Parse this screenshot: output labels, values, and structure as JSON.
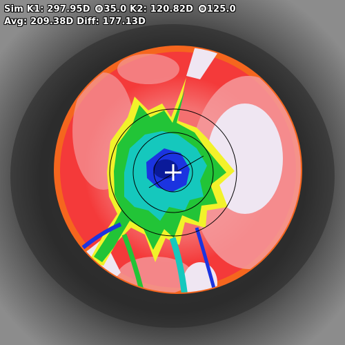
{
  "readout": {
    "sim_k1_label": "Sim K1:",
    "sim_k1_value": "297.95D",
    "sim_k1_axis": "35.0",
    "k2_label": "K2:",
    "k2_value": "120.82D",
    "k2_axis": "125.0",
    "avg_label": "Avg:",
    "avg_value": "209.38D",
    "diff_label": "Diff:",
    "diff_value": "177.13D"
  },
  "colors": {
    "rim_orange": "#f5661e",
    "red": "#f43a3a",
    "red_light": "#f47070",
    "pink": "#f4a6a8",
    "pale": "#efe6f2",
    "yellow": "#f2f22a",
    "green": "#22c437",
    "cyan": "#15c8bd",
    "blue": "#1b34e0",
    "navy": "#0a1a9a",
    "crosshair": "#ffffff",
    "rings": "#000000"
  },
  "icons": {
    "center_marker": "crosshair-plus-icon",
    "axis_indicator": "degree-circle-icon"
  }
}
